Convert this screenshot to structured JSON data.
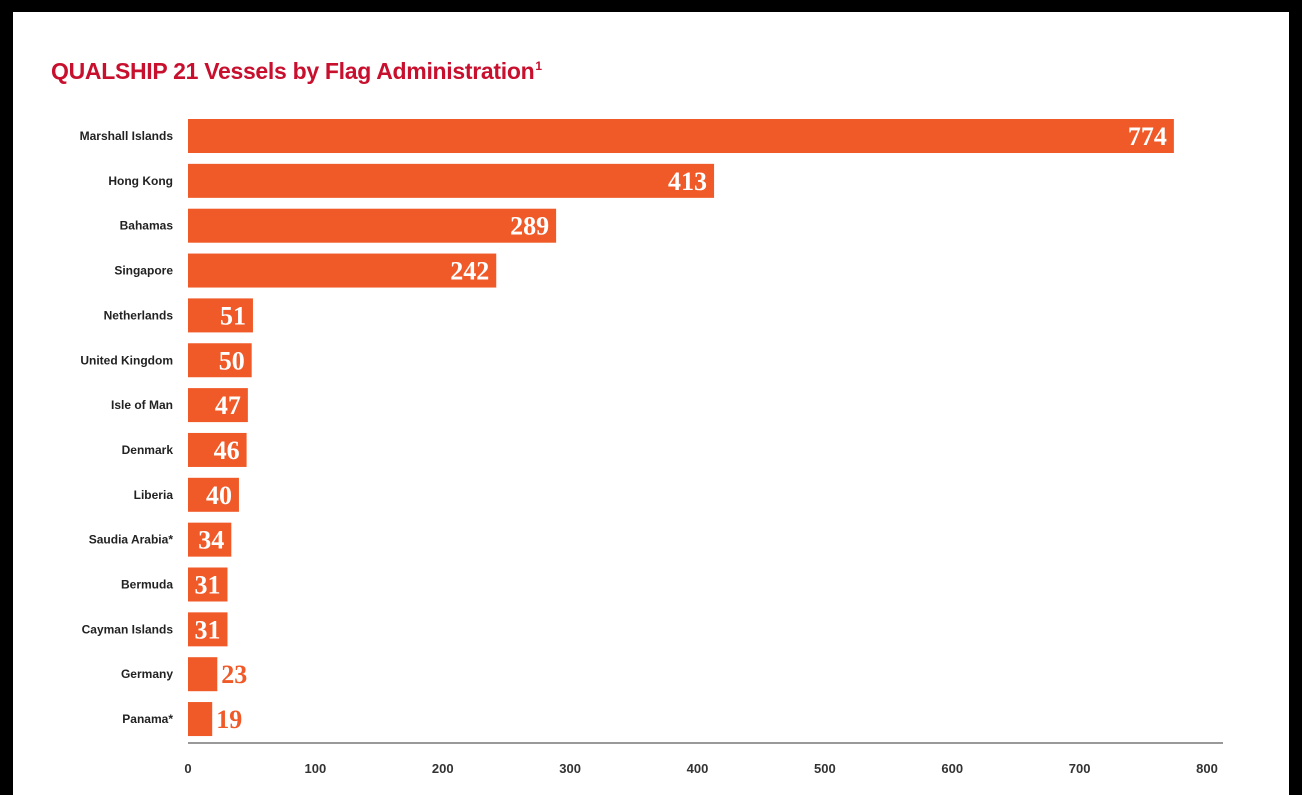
{
  "colors": {
    "bar": "#f05a28",
    "title": "#c8102e",
    "value_inside": "#ffffff",
    "value_outside": "#f05a28",
    "axis": "#333333"
  },
  "chart_data": {
    "type": "bar",
    "orientation": "horizontal",
    "title": "QUALSHIP 21 Vessels by Flag Administration",
    "title_superscript": "1",
    "categories": [
      "Marshall Islands",
      "Hong Kong",
      "Bahamas",
      "Singapore",
      "Netherlands",
      "United Kingdom",
      "Isle of Man",
      "Denmark",
      "Liberia",
      "Saudia Arabia*",
      "Bermuda",
      "Cayman Islands",
      "Germany",
      "Panama*"
    ],
    "values": [
      774,
      413,
      289,
      242,
      51,
      50,
      47,
      46,
      40,
      34,
      31,
      31,
      23,
      19
    ],
    "data_labels": [
      "774",
      "413",
      "289",
      "242",
      "51",
      "50",
      "47",
      "46",
      "40",
      "34",
      "31",
      "31",
      "23",
      "19"
    ],
    "xlim": [
      0,
      800
    ],
    "x_ticks": [
      0,
      100,
      200,
      300,
      400,
      500,
      600,
      700,
      800
    ],
    "x_tick_labels": [
      "0",
      "100",
      "200",
      "300",
      "400",
      "500",
      "600",
      "700",
      "800"
    ],
    "xlabel": "",
    "ylabel": "",
    "grid": false,
    "legend": "none"
  }
}
